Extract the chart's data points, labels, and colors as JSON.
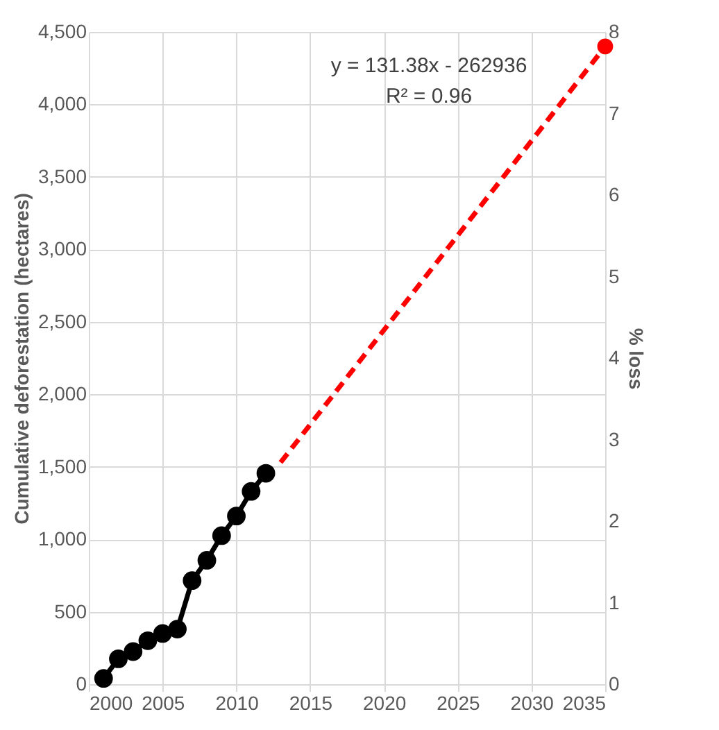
{
  "chart_data": {
    "type": "line",
    "ylabel": "Cumulative deforestation (hectares)",
    "y2label": "% loss",
    "annotations": [
      "y = 131.38x - 262936",
      "R² = 0.96"
    ],
    "series": [
      {
        "color": "#000000",
        "x": [
          2001,
          2002,
          2003,
          2004,
          2005,
          2006,
          2007,
          2008,
          2009,
          2010,
          2011,
          2012
        ],
        "values": [
          40,
          175,
          225,
          300,
          350,
          380,
          715,
          855,
          1025,
          1160,
          1330,
          1455
        ],
        "marker": "circle",
        "line_style": "solid"
      },
      {
        "color": "#ff0000",
        "x": [
          2013,
          2035
        ],
        "values": [
          1530,
          4400
        ],
        "marker": "none",
        "line_style": "dashed"
      },
      {
        "type": "scatter",
        "color": "#ff0000",
        "x": [
          2035
        ],
        "values": [
          4400
        ],
        "marker": "circle"
      }
    ],
    "xlim": [
      2000,
      2035
    ],
    "xticks": [
      2000,
      2005,
      2010,
      2015,
      2020,
      2025,
      2030,
      2035
    ],
    "ylim": [
      0,
      4500
    ],
    "yticks": [
      {
        "value": 0,
        "label": "0"
      },
      {
        "value": 500,
        "label": "500"
      },
      {
        "value": 1000,
        "label": "1,000"
      },
      {
        "value": 1500,
        "label": "1,500"
      },
      {
        "value": 2000,
        "label": "2,000"
      },
      {
        "value": 2500,
        "label": "2,500"
      },
      {
        "value": 3000,
        "label": "3,000"
      },
      {
        "value": 3500,
        "label": "3,500"
      },
      {
        "value": 4000,
        "label": "4,000"
      },
      {
        "value": 4500,
        "label": "4,500"
      }
    ],
    "y2lim": [
      0,
      8
    ],
    "y2ticks": [
      0,
      1,
      2,
      3,
      4,
      5,
      6,
      7,
      8
    ],
    "grid": true
  }
}
